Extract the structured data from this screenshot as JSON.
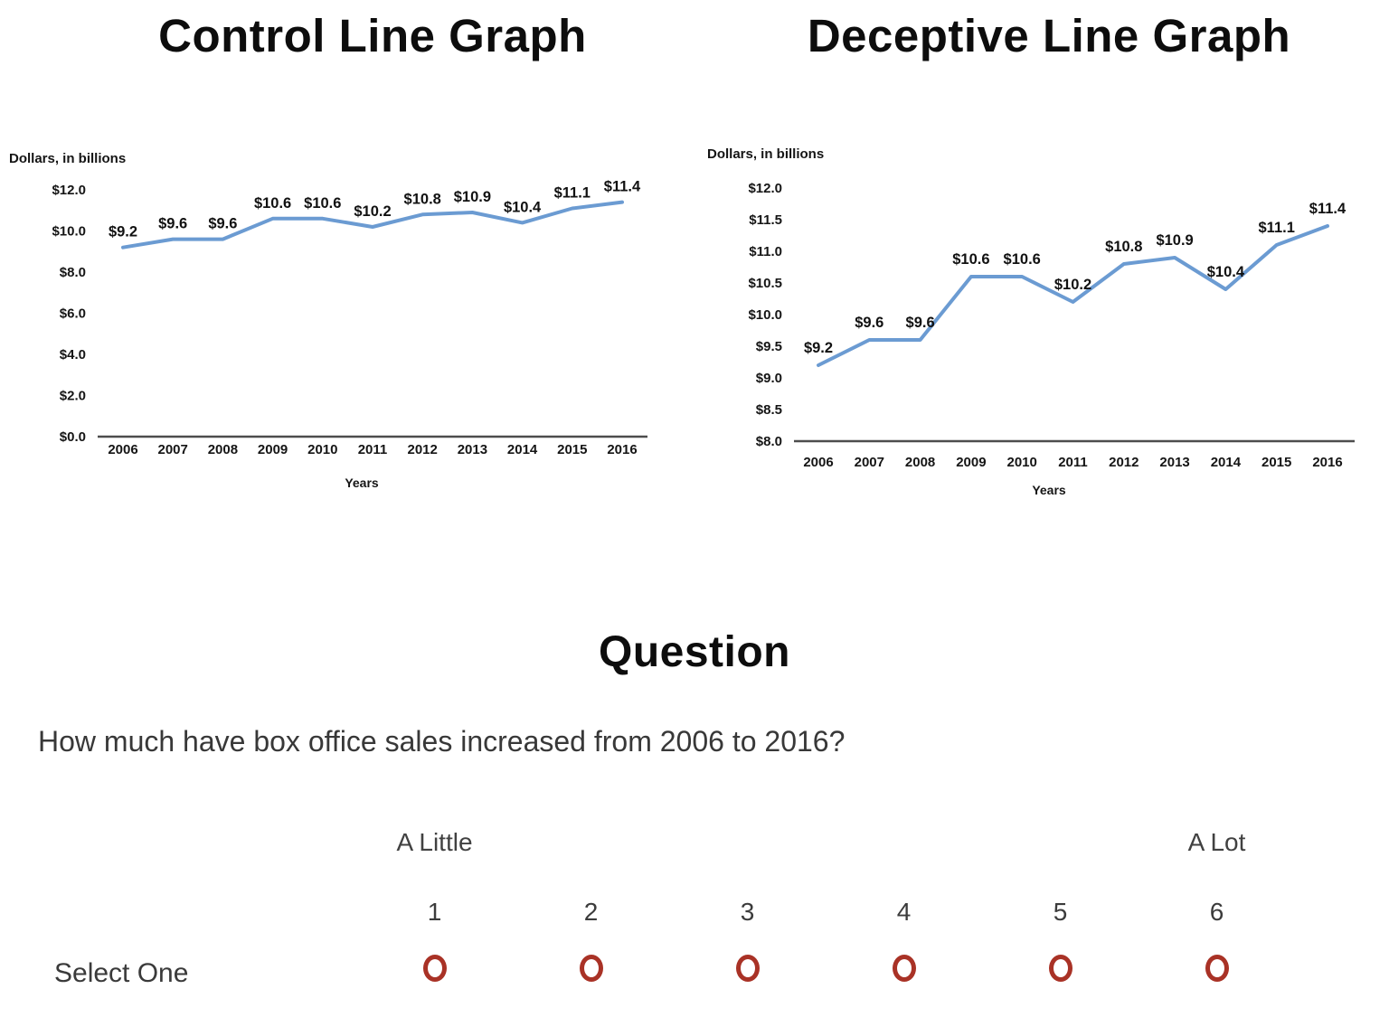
{
  "chart_data": [
    {
      "type": "line",
      "title": "Control Line Graph",
      "ylabel": "Dollars, in billions",
      "xlabel": "Years",
      "x": [
        "2006",
        "2007",
        "2008",
        "2009",
        "2010",
        "2011",
        "2012",
        "2013",
        "2014",
        "2015",
        "2016"
      ],
      "values": [
        9.2,
        9.6,
        9.6,
        10.6,
        10.6,
        10.2,
        10.8,
        10.9,
        10.4,
        11.1,
        11.4
      ],
      "data_labels": [
        "$9.2",
        "$9.6",
        "$9.6",
        "$10.6",
        "$10.6",
        "$10.2",
        "$10.8",
        "$10.9",
        "$10.4",
        "$11.1",
        "$11.4"
      ],
      "ylim": [
        0,
        12
      ],
      "ytick_step": 2,
      "ytick_labels": [
        "$0.0",
        "$2.0",
        "$4.0",
        "$6.0",
        "$8.0",
        "$10.0",
        "$12.0"
      ],
      "line_color": "#6b9bd2",
      "grid": false,
      "legend": "none"
    },
    {
      "type": "line",
      "title": "Deceptive Line Graph",
      "ylabel": "Dollars, in billions",
      "xlabel": "Years",
      "x": [
        "2006",
        "2007",
        "2008",
        "2009",
        "2010",
        "2011",
        "2012",
        "2013",
        "2014",
        "2015",
        "2016"
      ],
      "values": [
        9.2,
        9.6,
        9.6,
        10.6,
        10.6,
        10.2,
        10.8,
        10.9,
        10.4,
        11.1,
        11.4
      ],
      "data_labels": [
        "$9.2",
        "$9.6",
        "$9.6",
        "$10.6",
        "$10.6",
        "$10.2",
        "$10.8",
        "$10.9",
        "$10.4",
        "$11.1",
        "$11.4"
      ],
      "ylim": [
        8,
        12
      ],
      "ytick_step": 0.5,
      "ytick_labels": [
        "$8.0",
        "$8.5",
        "$9.0",
        "$9.5",
        "$10.0",
        "$10.5",
        "$11.0",
        "$11.5",
        "$12.0"
      ],
      "line_color": "#6b9bd2",
      "grid": false,
      "legend": "none"
    }
  ],
  "question": {
    "heading": "Question",
    "prompt": "How much have box office sales increased from 2006 to 2016?",
    "scale": {
      "low_label": "A Little",
      "high_label": "A Lot",
      "options": [
        "1",
        "2",
        "3",
        "4",
        "5",
        "6"
      ],
      "select_label": "Select One",
      "radio_color": "#a93226"
    }
  }
}
